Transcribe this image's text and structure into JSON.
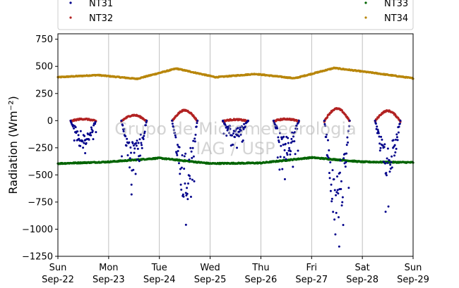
{
  "chart_data": {
    "type": "scatter",
    "ylabel": "Radiation (Wm⁻²)",
    "ylim": [
      -1250,
      800
    ],
    "yticks": [
      -1250,
      -1000,
      -750,
      -500,
      -250,
      0,
      250,
      500,
      750
    ],
    "yticklabels": [
      "−1250",
      "−1000",
      "−750",
      "−500",
      "−250",
      "0",
      "250",
      "500",
      "750"
    ],
    "xlim": [
      "2024-09-22",
      "2024-09-29"
    ],
    "xticks": [
      {
        "date": "2024-09-22",
        "day": "Sun",
        "label": "Sep-22"
      },
      {
        "date": "2024-09-23",
        "day": "Mon",
        "label": "Sep-23"
      },
      {
        "date": "2024-09-24",
        "day": "Tue",
        "label": "Sep-24"
      },
      {
        "date": "2024-09-25",
        "day": "Wed",
        "label": "Sep-25"
      },
      {
        "date": "2024-09-26",
        "day": "Thu",
        "label": "Sep-26"
      },
      {
        "date": "2024-09-27",
        "day": "Fri",
        "label": "Sep-27"
      },
      {
        "date": "2024-09-28",
        "day": "Sat",
        "label": "Sep-28"
      },
      {
        "date": "2024-09-29",
        "day": "Sun",
        "label": "Sep-29"
      }
    ],
    "grid": "vertical",
    "legend": {
      "placement": "top",
      "columns": 2
    },
    "watermark": [
      "Grupo de Micrometeorologia",
      "IAG / USP"
    ],
    "series": [
      {
        "name": "NT31",
        "color": "#00008b",
        "style": "nighttime-zero, daytime negative",
        "daily_min": [
          -300,
          -680,
          -960,
          -250,
          -540,
          -1160,
          -840
        ],
        "daily_typical_min": [
          -220,
          -420,
          -650,
          -140,
          -300,
          -800,
          -450
        ]
      },
      {
        "name": "NT32",
        "color": "#b22222",
        "style": "daytime bumps",
        "daily_peak": [
          20,
          55,
          100,
          15,
          20,
          115,
          95
        ]
      },
      {
        "name": "NT33",
        "color": "#006400",
        "style": "near constant",
        "daily_level": [
          -395,
          -380,
          -345,
          -395,
          -390,
          -340,
          -380,
          -385
        ]
      },
      {
        "name": "NT34",
        "color": "#b8860b",
        "style": "near constant",
        "daily_level": [
          400,
          420,
          385,
          480,
          400,
          430,
          390,
          485,
          440,
          390
        ]
      }
    ]
  }
}
